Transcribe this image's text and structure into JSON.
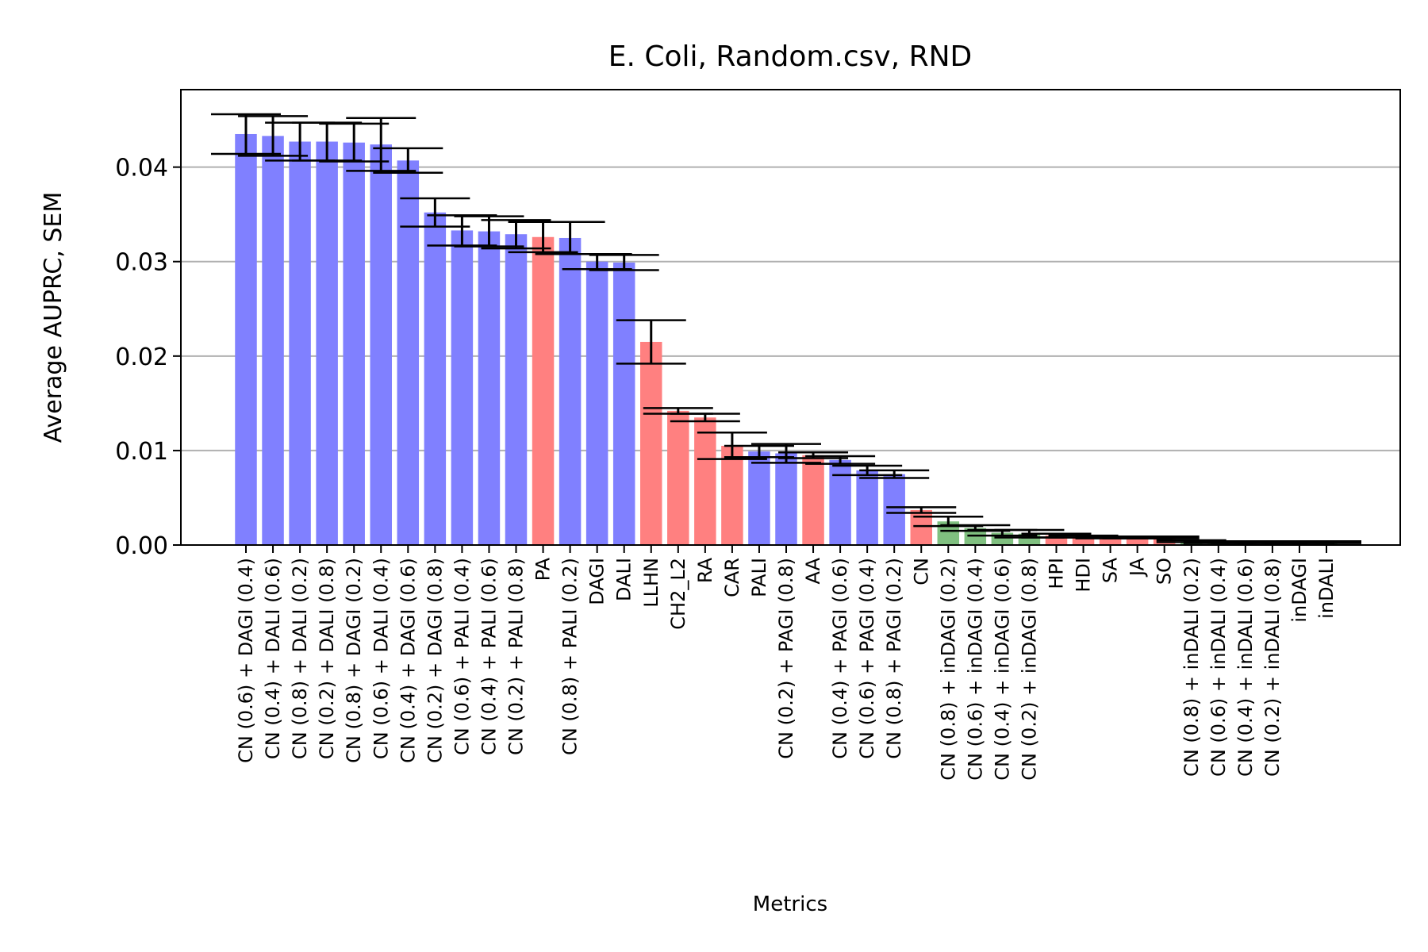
{
  "chart_data": {
    "type": "bar",
    "title": "E. Coli, Random.csv, RND",
    "xlabel": "Metrics",
    "ylabel": "Average AUPRC, SEM",
    "ylim": [
      0,
      0.0482
    ],
    "yticks": [
      "0.00",
      "0.01",
      "0.02",
      "0.03",
      "0.04"
    ],
    "grid": "y",
    "colors": {
      "blue": "#8080ff",
      "red": "#ff8080",
      "green": "#80c080"
    },
    "bars": [
      {
        "label": "CN (0.6) + DAGI (0.4)",
        "value": 0.0435,
        "sem": 0.0021,
        "color": "blue"
      },
      {
        "label": "CN (0.4) + DALI (0.6)",
        "value": 0.0433,
        "sem": 0.0021,
        "color": "blue"
      },
      {
        "label": "CN (0.8) + DALI (0.2)",
        "value": 0.0427,
        "sem": 0.002,
        "color": "blue"
      },
      {
        "label": "CN (0.2) + DALI (0.8)",
        "value": 0.0427,
        "sem": 0.002,
        "color": "blue"
      },
      {
        "label": "CN (0.8) + DAGI (0.2)",
        "value": 0.0426,
        "sem": 0.002,
        "color": "blue"
      },
      {
        "label": "CN (0.6) + DALI (0.4)",
        "value": 0.0424,
        "sem": 0.0028,
        "color": "blue"
      },
      {
        "label": "CN (0.4) + DAGI (0.6)",
        "value": 0.0407,
        "sem": 0.0013,
        "color": "blue"
      },
      {
        "label": "CN (0.2) + DAGI (0.8)",
        "value": 0.0352,
        "sem": 0.0015,
        "color": "blue"
      },
      {
        "label": "CN (0.6) + PALI (0.4)",
        "value": 0.0333,
        "sem": 0.0016,
        "color": "blue"
      },
      {
        "label": "CN (0.4) + PALI (0.6)",
        "value": 0.0332,
        "sem": 0.0016,
        "color": "blue"
      },
      {
        "label": "CN (0.2) + PALI (0.8)",
        "value": 0.0329,
        "sem": 0.0015,
        "color": "blue"
      },
      {
        "label": "PA",
        "value": 0.0326,
        "sem": 0.0016,
        "color": "red"
      },
      {
        "label": "CN (0.8) + PALI (0.2)",
        "value": 0.0325,
        "sem": 0.0017,
        "color": "blue"
      },
      {
        "label": "DAGI",
        "value": 0.03,
        "sem": 0.0008,
        "color": "blue"
      },
      {
        "label": "DALI",
        "value": 0.0299,
        "sem": 0.0008,
        "color": "blue"
      },
      {
        "label": "LLHN",
        "value": 0.0215,
        "sem": 0.0023,
        "color": "red"
      },
      {
        "label": "CH2_L2",
        "value": 0.0142,
        "sem": 0.0003,
        "color": "red"
      },
      {
        "label": "RA",
        "value": 0.0135,
        "sem": 0.0004,
        "color": "red"
      },
      {
        "label": "CAR",
        "value": 0.0105,
        "sem": 0.0014,
        "color": "red"
      },
      {
        "label": "PALI",
        "value": 0.0099,
        "sem": 0.0006,
        "color": "blue"
      },
      {
        "label": "CN (0.2) + PAGI (0.8)",
        "value": 0.0097,
        "sem": 0.001,
        "color": "blue"
      },
      {
        "label": "AA",
        "value": 0.0095,
        "sem": 0.0003,
        "color": "red"
      },
      {
        "label": "CN (0.4) + PAGI (0.6)",
        "value": 0.009,
        "sem": 0.0004,
        "color": "blue"
      },
      {
        "label": "CN (0.6) + PAGI (0.4)",
        "value": 0.0079,
        "sem": 0.0005,
        "color": "blue"
      },
      {
        "label": "CN (0.8) + PAGI (0.2)",
        "value": 0.0075,
        "sem": 0.0004,
        "color": "blue"
      },
      {
        "label": "CN",
        "value": 0.0037,
        "sem": 0.0003,
        "color": "red"
      },
      {
        "label": "CN (0.8) + inDAGI (0.2)",
        "value": 0.0025,
        "sem": 0.0005,
        "color": "green"
      },
      {
        "label": "CN (0.6) + inDAGI (0.4)",
        "value": 0.0018,
        "sem": 0.0003,
        "color": "green"
      },
      {
        "label": "CN (0.4) + inDAGI (0.6)",
        "value": 0.0013,
        "sem": 0.0003,
        "color": "green"
      },
      {
        "label": "CN (0.2) + inDAGI (0.8)",
        "value": 0.0012,
        "sem": 0.0004,
        "color": "green"
      },
      {
        "label": "HPI",
        "value": 0.001,
        "sem": 0.0002,
        "color": "red"
      },
      {
        "label": "HDI",
        "value": 0.0009,
        "sem": 0.0001,
        "color": "red"
      },
      {
        "label": "SA",
        "value": 0.0008,
        "sem": 0.0001,
        "color": "red"
      },
      {
        "label": "JA",
        "value": 0.0008,
        "sem": 0.0001,
        "color": "red"
      },
      {
        "label": "SO",
        "value": 0.0008,
        "sem": 0.0001,
        "color": "red"
      },
      {
        "label": "CN (0.8) + inDALI (0.2)",
        "value": 0.0004,
        "sem": 0.0001,
        "color": "green"
      },
      {
        "label": "CN (0.6) + inDALI (0.4)",
        "value": 0.0003,
        "sem": 0.0001,
        "color": "green"
      },
      {
        "label": "CN (0.4) + inDALI (0.6)",
        "value": 0.0003,
        "sem": 0.0001,
        "color": "green"
      },
      {
        "label": "CN (0.2) + inDALI (0.8)",
        "value": 0.0003,
        "sem": 0.0001,
        "color": "green"
      },
      {
        "label": "inDAGI",
        "value": 0.0003,
        "sem": 0.0001,
        "color": "green"
      },
      {
        "label": "inDALI",
        "value": 0.0003,
        "sem": 0.0001,
        "color": "green"
      }
    ]
  }
}
